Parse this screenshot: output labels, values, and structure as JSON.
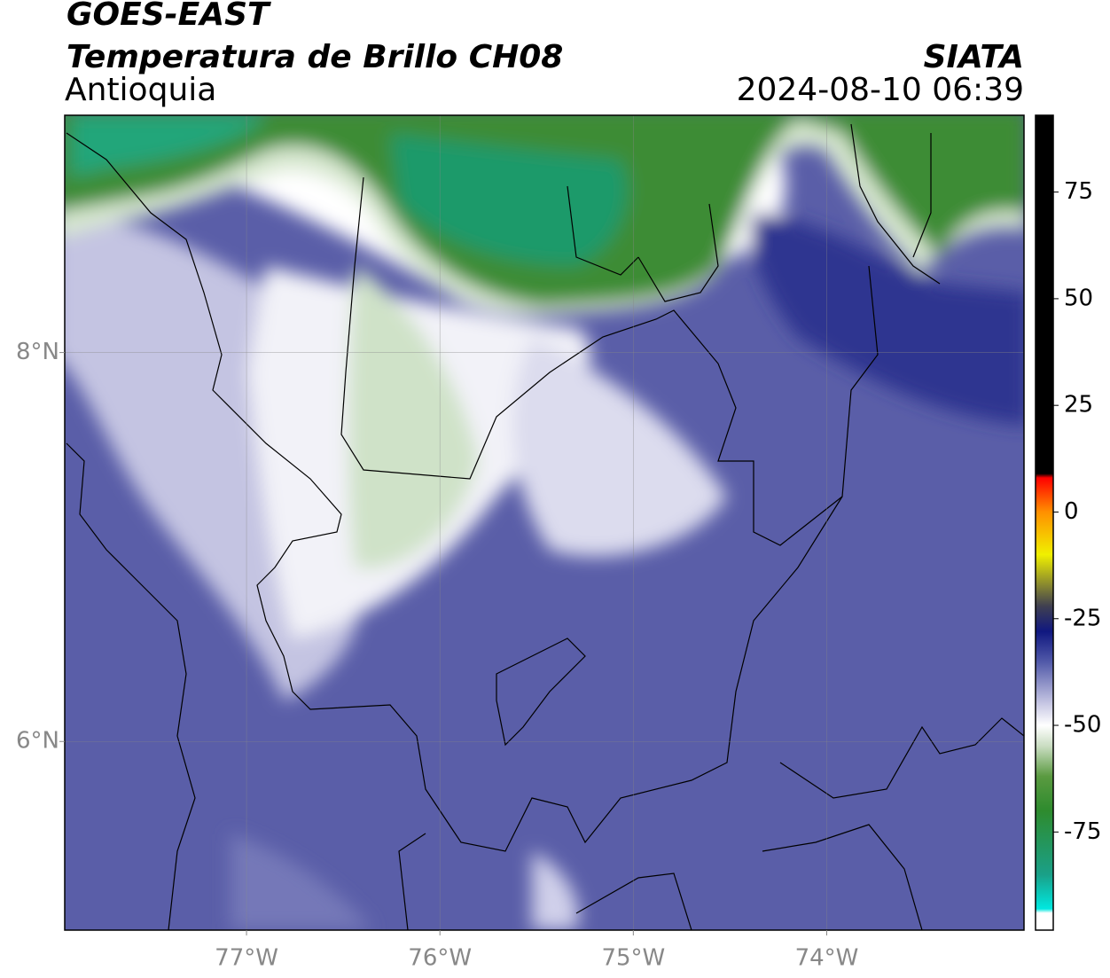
{
  "header": {
    "title": "GOES-EAST",
    "subtitle": "Temperatura de Brillo CH08",
    "region": "Antioquia",
    "source": "SIATA",
    "timestamp": "2024-08-10 06:39"
  },
  "map": {
    "xlim": [
      -77.94,
      -72.98
    ],
    "ylim": [
      5.03,
      9.22
    ],
    "xticks": [
      {
        "value": -77,
        "label": "77°W"
      },
      {
        "value": -76,
        "label": "76°W"
      },
      {
        "value": -75,
        "label": "75°W"
      },
      {
        "value": -74,
        "label": "74°W"
      }
    ],
    "yticks": [
      {
        "value": 8,
        "label": "8°N"
      },
      {
        "value": 6,
        "label": "6°N"
      }
    ],
    "grid": true
  },
  "colorbar": {
    "lim": [
      -98,
      93
    ],
    "ticks": [
      75,
      50,
      25,
      0,
      -25,
      -50,
      -75
    ],
    "stops": [
      {
        "value": -98,
        "color": "#ffffff"
      },
      {
        "value": -94,
        "color": "#ffffff"
      },
      {
        "value": -93,
        "color": "#00e8e0"
      },
      {
        "value": -85,
        "color": "#1aa088"
      },
      {
        "value": -70,
        "color": "#2e8b2e"
      },
      {
        "value": -62,
        "color": "#5a9a40"
      },
      {
        "value": -55,
        "color": "#c8dcc0"
      },
      {
        "value": -50,
        "color": "#ffffff"
      },
      {
        "value": -45,
        "color": "#c8c8e4"
      },
      {
        "value": -35,
        "color": "#5058a8"
      },
      {
        "value": -28,
        "color": "#101880"
      },
      {
        "value": -22,
        "color": "#404050"
      },
      {
        "value": -10,
        "color": "#f0f000"
      },
      {
        "value": 0,
        "color": "#ff9000"
      },
      {
        "value": 8,
        "color": "#ff0000"
      },
      {
        "value": 9,
        "color": "#000000"
      },
      {
        "value": 93,
        "color": "#000000"
      }
    ]
  }
}
